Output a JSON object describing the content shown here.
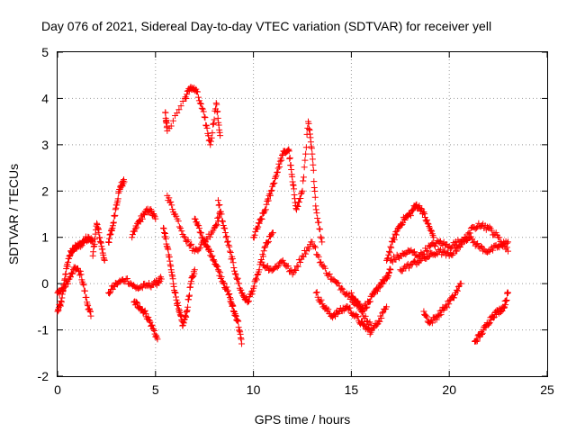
{
  "chart_data": {
    "type": "scatter",
    "title": "Day 076 of 2021, Sidereal Day-to-day VTEC variation (SDTVAR) for receiver yell",
    "xlabel": "GPS time / hours",
    "ylabel": "SDTVAR / TECUs",
    "xlim": [
      0,
      25
    ],
    "ylim": [
      -2,
      5
    ],
    "xticks": [
      "0",
      "5",
      "10",
      "15",
      "20",
      "25"
    ],
    "yticks": [
      "-2",
      "-1",
      "0",
      "1",
      "2",
      "3",
      "4",
      "5"
    ],
    "grid": true,
    "legend": "none",
    "marker": "+",
    "point_color": "#ff0000",
    "series": [
      {
        "name": "SDTVAR",
        "tracks": [
          {
            "name": "track-a",
            "x": [
              0.0,
              0.2,
              0.4,
              0.6,
              0.8,
              1.0,
              1.2,
              1.4,
              1.6,
              1.8
            ],
            "y": [
              -0.6,
              -0.4,
              0.2,
              0.6,
              0.75,
              0.8,
              0.85,
              0.95,
              1.0,
              0.9
            ]
          },
          {
            "name": "track-b",
            "x": [
              0.0,
              0.3,
              0.6,
              0.9,
              1.2,
              1.5,
              1.7
            ],
            "y": [
              -0.2,
              -0.1,
              0.1,
              0.35,
              0.2,
              -0.4,
              -0.7
            ]
          },
          {
            "name": "track-c",
            "x": [
              1.8,
              2.0,
              2.2,
              2.4
            ],
            "y": [
              0.6,
              1.3,
              0.9,
              0.5
            ]
          },
          {
            "name": "track-d",
            "x": [
              2.6,
              2.8,
              3.0,
              3.2,
              3.4
            ],
            "y": [
              0.9,
              1.2,
              1.7,
              2.1,
              2.2
            ]
          },
          {
            "name": "track-e",
            "x": [
              2.6,
              3.0,
              3.5,
              4.0,
              4.5,
              5.0,
              5.3
            ],
            "y": [
              -0.2,
              0.0,
              0.1,
              -0.1,
              -0.05,
              0.0,
              0.1
            ]
          },
          {
            "name": "track-f",
            "x": [
              3.8,
              4.1,
              4.4,
              4.7,
              5.0
            ],
            "y": [
              1.0,
              1.3,
              1.5,
              1.6,
              1.4
            ]
          },
          {
            "name": "track-g",
            "x": [
              3.9,
              4.2,
              4.5,
              4.8,
              5.1
            ],
            "y": [
              -0.4,
              -0.5,
              -0.65,
              -0.9,
              -1.2
            ]
          },
          {
            "name": "track-h",
            "x": [
              5.4,
              5.6,
              5.8,
              6.0,
              6.2,
              6.4,
              6.6,
              6.8,
              7.0
            ],
            "y": [
              1.2,
              0.8,
              0.3,
              -0.2,
              -0.6,
              -0.9,
              -0.6,
              0.0,
              0.3
            ]
          },
          {
            "name": "track-i",
            "x": [
              5.6,
              6.0,
              6.5,
              7.0,
              7.5,
              8.0,
              8.3
            ],
            "y": [
              1.9,
              1.5,
              1.0,
              0.7,
              0.9,
              1.2,
              1.5
            ]
          },
          {
            "name": "track-j",
            "x": [
              5.5,
              5.6,
              6.5,
              6.8,
              7.1,
              7.5,
              7.8,
              8.1,
              8.3
            ],
            "y": [
              3.7,
              3.3,
              4.0,
              4.25,
              4.15,
              3.6,
              3.0,
              3.9,
              3.2
            ]
          },
          {
            "name": "track-k",
            "x": [
              7.0,
              7.3,
              7.6,
              7.9,
              8.2,
              8.5,
              8.8,
              9.0,
              9.2,
              9.4
            ],
            "y": [
              1.4,
              1.1,
              0.8,
              0.6,
              0.3,
              0.0,
              -0.3,
              -0.6,
              -0.8,
              -1.3
            ]
          },
          {
            "name": "track-l",
            "x": [
              8.2,
              8.5,
              8.8,
              9.1,
              9.4,
              9.7,
              10.0,
              10.3,
              10.6,
              11.0
            ],
            "y": [
              1.8,
              1.2,
              0.7,
              0.2,
              -0.2,
              -0.4,
              -0.1,
              0.3,
              0.8,
              1.1
            ]
          },
          {
            "name": "track-m",
            "x": [
              10.0,
              10.3,
              10.6,
              10.9,
              11.2,
              11.5,
              11.8,
              12.0,
              12.2,
              12.5,
              12.8,
              13.0,
              13.2,
              13.5
            ],
            "y": [
              1.0,
              1.3,
              1.6,
              2.0,
              2.4,
              2.8,
              2.9,
              2.2,
              1.6,
              2.0,
              3.5,
              2.8,
              1.6,
              0.9
            ]
          },
          {
            "name": "track-n",
            "x": [
              10.5,
              11.0,
              11.5,
              12.0,
              12.5,
              13.0,
              13.5,
              14.0,
              14.5,
              15.0,
              15.5,
              16.0
            ],
            "y": [
              0.4,
              0.3,
              0.5,
              0.2,
              0.6,
              0.9,
              0.4,
              0.1,
              -0.1,
              -0.3,
              -0.6,
              -0.9
            ]
          },
          {
            "name": "track-o",
            "x": [
              13.2,
              13.6,
              14.0,
              14.4,
              14.8,
              15.2,
              15.6,
              16.0,
              16.4,
              16.8
            ],
            "y": [
              -0.2,
              -0.5,
              -0.7,
              -0.6,
              -0.5,
              -0.7,
              -0.9,
              -1.05,
              -0.8,
              -0.5
            ]
          },
          {
            "name": "track-p",
            "x": [
              15.0,
              15.3,
              15.6,
              15.9,
              16.2,
              16.5,
              16.8,
              17.0
            ],
            "y": [
              -0.2,
              -0.4,
              -0.55,
              -0.4,
              -0.2,
              0.0,
              0.1,
              0.3
            ]
          },
          {
            "name": "track-q",
            "x": [
              16.8,
              17.1,
              17.4,
              17.7,
              18.0,
              18.3,
              18.6,
              18.9,
              19.2
            ],
            "y": [
              0.5,
              0.9,
              1.2,
              1.4,
              1.5,
              1.7,
              1.6,
              1.3,
              1.0
            ]
          },
          {
            "name": "track-r",
            "x": [
              17.0,
              17.5,
              18.0,
              18.5,
              19.0,
              19.5,
              20.0,
              20.5,
              21.0,
              21.5,
              22.0,
              22.5,
              23.0
            ],
            "y": [
              0.5,
              0.6,
              0.7,
              0.6,
              0.8,
              0.9,
              0.8,
              0.9,
              1.0,
              0.8,
              0.7,
              0.8,
              0.9
            ]
          },
          {
            "name": "track-s",
            "x": [
              17.5,
              18.0,
              18.5,
              19.0,
              19.5,
              20.0,
              20.5,
              21.0,
              21.5,
              22.0,
              22.5,
              23.0
            ],
            "y": [
              0.3,
              0.4,
              0.5,
              0.6,
              0.7,
              0.6,
              0.8,
              1.1,
              1.3,
              1.2,
              1.0,
              0.7
            ]
          },
          {
            "name": "track-t",
            "x": [
              18.7,
              19.0,
              19.4,
              19.8,
              20.2,
              20.6
            ],
            "y": [
              -0.6,
              -0.85,
              -0.7,
              -0.5,
              -0.3,
              0.0
            ]
          },
          {
            "name": "track-u",
            "x": [
              21.3,
              21.6,
              21.9,
              22.2,
              22.5,
              22.8,
              23.0
            ],
            "y": [
              -1.25,
              -1.1,
              -0.9,
              -0.7,
              -0.6,
              -0.5,
              -0.2
            ]
          }
        ]
      }
    ]
  }
}
